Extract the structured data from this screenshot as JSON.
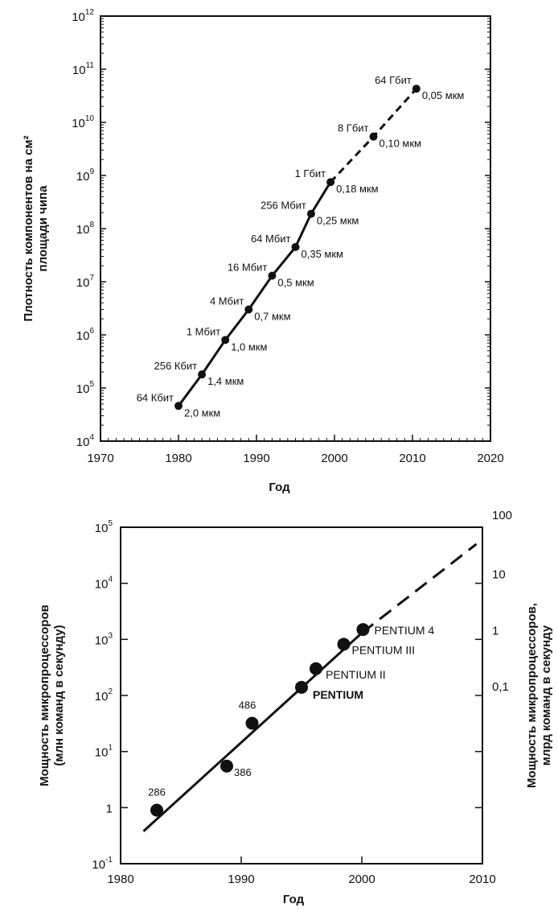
{
  "chart_data": [
    {
      "type": "line",
      "title": "",
      "xlabel": "Год",
      "ylabel": [
        "Плотность компонентов на см²",
        "площади чипа"
      ],
      "y_scale": "log",
      "xlim": [
        1970,
        2020
      ],
      "ylim": [
        10000,
        1000000000000
      ],
      "x_ticks": [
        "1970",
        "1980",
        "1990",
        "2000",
        "2010",
        "2020"
      ],
      "y_ticks": [
        {
          "base": "10",
          "exp": "4"
        },
        {
          "base": "10",
          "exp": "5"
        },
        {
          "base": "10",
          "exp": "6"
        },
        {
          "base": "10",
          "exp": "7"
        },
        {
          "base": "10",
          "exp": "8"
        },
        {
          "base": "10",
          "exp": "9"
        },
        {
          "base": "10",
          "exp": "10"
        },
        {
          "base": "10",
          "exp": "11"
        },
        {
          "base": "10",
          "exp": "12"
        }
      ],
      "grid": false,
      "series": [
        {
          "name": "",
          "points": [
            {
              "x": 1980,
              "y": 46000,
              "label": "64 Кбит",
              "sublabel": "2,0 мкм",
              "projected": false
            },
            {
              "x": 1983,
              "y": 180000,
              "label": "256 Кбит",
              "sublabel": "1,4 мкм",
              "projected": false
            },
            {
              "x": 1986,
              "y": 800000,
              "label": "1 Мбит",
              "sublabel": "1,0 мкм",
              "projected": false
            },
            {
              "x": 1989,
              "y": 3000000,
              "label": "4 Мбит",
              "sublabel": "0,7 мкм",
              "projected": false
            },
            {
              "x": 1992,
              "y": 13000000,
              "label": "16 Мбит",
              "sublabel": "0,5 мкм",
              "projected": false
            },
            {
              "x": 1995,
              "y": 45000000,
              "label": "64 Мбит",
              "sublabel": "0,35 мкм",
              "projected": false
            },
            {
              "x": 1997,
              "y": 190000000,
              "label": "256 Мбит",
              "sublabel": "0,25 мкм",
              "projected": false
            },
            {
              "x": 1999.5,
              "y": 750000000,
              "label": "1 Гбит",
              "sublabel": "0,18 мкм",
              "projected": false
            },
            {
              "x": 2005,
              "y": 5400000000,
              "label": "8 Гбит",
              "sublabel": "0,10 мкм",
              "projected": true
            },
            {
              "x": 2010.5,
              "y": 43000000000,
              "label": "64 Гбит",
              "sublabel": "0,05 мкм",
              "projected": true
            }
          ]
        }
      ]
    },
    {
      "type": "scatter",
      "title": "",
      "xlabel": "Год",
      "ylabel": [
        "Мощность микропроцессоров",
        "(млн команд в секунду)"
      ],
      "y2label": [
        "Мощность микропроцессоров,",
        "млрд команд в секунду"
      ],
      "y_scale": "log",
      "xlim": [
        1980,
        2010
      ],
      "ylim": [
        0.1,
        100000
      ],
      "x_ticks": [
        "1980",
        "1990",
        "2000",
        "2010"
      ],
      "y_ticks": [
        {
          "base": "10",
          "exp": "5"
        },
        {
          "base": "10",
          "exp": "4"
        },
        {
          "base": "10",
          "exp": "3"
        },
        {
          "base": "10",
          "exp": "2"
        },
        {
          "base": "10",
          "exp": "1"
        },
        {
          "base": "1",
          "exp": ""
        },
        {
          "base": "10",
          "exp": "-1"
        }
      ],
      "y2_ticks": [
        "100",
        "10",
        "1",
        "0,1"
      ],
      "grid": false,
      "points": [
        {
          "x": 1983,
          "y": 0.9,
          "label": "286"
        },
        {
          "x": 1988.8,
          "y": 5.5,
          "label": "386"
        },
        {
          "x": 1990.9,
          "y": 32,
          "label": "486"
        },
        {
          "x": 1995,
          "y": 140,
          "label": "PENTIUM"
        },
        {
          "x": 1996.2,
          "y": 300,
          "label": "PENTIUM II"
        },
        {
          "x": 1998.5,
          "y": 820,
          "label": "PENTIUM III"
        },
        {
          "x": 2000.1,
          "y": 1500,
          "label": "PENTIUM 4"
        }
      ],
      "trend": {
        "from": [
          1981.9,
          0.38
        ],
        "solid_to": [
          2000,
          1300
        ],
        "dashed_to": [
          2009.5,
          50000
        ]
      }
    }
  ]
}
